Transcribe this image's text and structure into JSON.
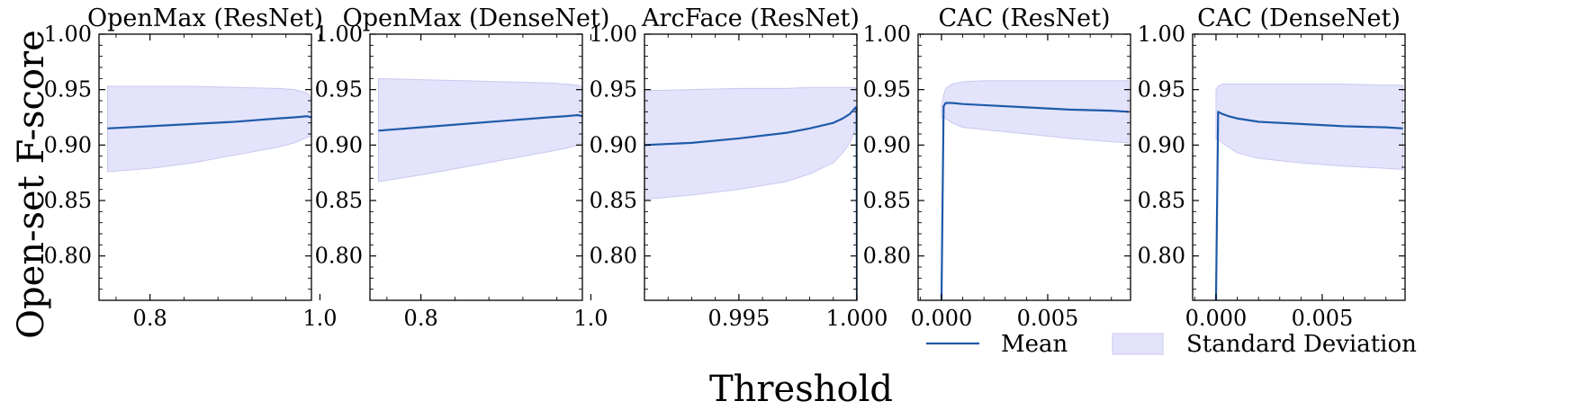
{
  "figure": {
    "ylabel": "Open-set F-score",
    "xlabel": "Threshold",
    "colors": {
      "mean": "#1f5aa8",
      "band_fill": "#e3e3fb",
      "band_edge": "#c9c9f2"
    },
    "legend": {
      "placement": "bottom-right",
      "items": [
        {
          "label": "Mean",
          "kind": "line"
        },
        {
          "label": "Standard Deviation",
          "kind": "band"
        }
      ]
    }
  },
  "chart_data": [
    {
      "type": "line",
      "title": "OpenMax (ResNet)",
      "xlim": [
        0.74,
        0.99
      ],
      "ylim": [
        0.76,
        1.0
      ],
      "xticks": [
        {
          "v": 0.8,
          "label": "0.8"
        },
        {
          "v": 1.0,
          "label": "1.0"
        }
      ],
      "yticks": [
        0.8,
        0.85,
        0.9,
        0.95,
        1.0
      ],
      "ytick_labels": [
        "0.80",
        "0.85",
        "0.90",
        "0.95",
        "1.00"
      ],
      "x": [
        0.75,
        0.8,
        0.85,
        0.9,
        0.95,
        0.97,
        0.985,
        0.99
      ],
      "mean": [
        0.915,
        0.917,
        0.919,
        0.921,
        0.924,
        0.925,
        0.926,
        0.925
      ],
      "upper": [
        0.953,
        0.953,
        0.953,
        0.952,
        0.951,
        0.95,
        0.947,
        0.942
      ],
      "lower": [
        0.876,
        0.879,
        0.884,
        0.891,
        0.898,
        0.902,
        0.907,
        0.908
      ]
    },
    {
      "type": "line",
      "title": "OpenMax (DenseNet)",
      "xlim": [
        0.74,
        0.99
      ],
      "ylim": [
        0.76,
        1.0
      ],
      "xticks": [
        {
          "v": 0.8,
          "label": "0.8"
        },
        {
          "v": 1.0,
          "label": "1.0"
        }
      ],
      "yticks": [
        0.8,
        0.85,
        0.9,
        0.95,
        1.0
      ],
      "ytick_labels": [
        "0.80",
        "0.85",
        "0.90",
        "0.95",
        "1.00"
      ],
      "x": [
        0.75,
        0.8,
        0.85,
        0.9,
        0.95,
        0.97,
        0.985,
        0.99
      ],
      "mean": [
        0.913,
        0.916,
        0.919,
        0.922,
        0.925,
        0.926,
        0.927,
        0.926
      ],
      "upper": [
        0.96,
        0.959,
        0.958,
        0.957,
        0.956,
        0.955,
        0.954,
        0.952
      ],
      "lower": [
        0.867,
        0.873,
        0.88,
        0.887,
        0.894,
        0.897,
        0.9,
        0.902
      ]
    },
    {
      "type": "line",
      "title": "ArcFace (ResNet)",
      "xlim": [
        0.991,
        1.0
      ],
      "ylim": [
        0.76,
        1.0
      ],
      "xticks": [
        {
          "v": 0.995,
          "label": "0.995"
        },
        {
          "v": 1.0,
          "label": "1.000"
        }
      ],
      "yticks": [
        0.8,
        0.85,
        0.9,
        0.95,
        1.0
      ],
      "ytick_labels": [
        "0.80",
        "0.85",
        "0.90",
        "0.95",
        "1.00"
      ],
      "x": [
        0.991,
        0.993,
        0.995,
        0.997,
        0.998,
        0.999,
        0.9994,
        0.9997,
        0.99995,
        0.99999,
        1.0
      ],
      "mean": [
        0.9,
        0.902,
        0.906,
        0.911,
        0.915,
        0.92,
        0.924,
        0.928,
        0.934,
        0.93,
        0.76
      ],
      "upper": [
        0.949,
        0.95,
        0.951,
        0.951,
        0.952,
        0.952,
        0.952,
        0.952,
        0.952,
        0.948,
        0.945
      ],
      "lower": [
        0.851,
        0.855,
        0.86,
        0.867,
        0.874,
        0.884,
        0.893,
        0.902,
        0.915,
        0.93,
        0.94
      ]
    },
    {
      "type": "line",
      "title": "CAC (ResNet)",
      "xlim": [
        -0.0011,
        0.0089
      ],
      "ylim": [
        0.76,
        1.0
      ],
      "xticks": [
        {
          "v": 0.0,
          "label": "0.000"
        },
        {
          "v": 0.005,
          "label": "0.005"
        }
      ],
      "yticks": [
        0.8,
        0.85,
        0.9,
        0.95,
        1.0
      ],
      "ytick_labels": [
        "0.80",
        "0.85",
        "0.90",
        "0.95",
        "1.00"
      ],
      "x": [
        0.0,
        0.0001,
        0.0002,
        0.0005,
        0.001,
        0.002,
        0.004,
        0.006,
        0.008,
        0.0088
      ],
      "mean": [
        0.76,
        0.935,
        0.938,
        0.938,
        0.937,
        0.936,
        0.934,
        0.932,
        0.931,
        0.93
      ],
      "upper": [
        0.935,
        0.945,
        0.951,
        0.955,
        0.957,
        0.958,
        0.958,
        0.958,
        0.958,
        0.958
      ],
      "lower": [
        0.924,
        0.924,
        0.924,
        0.92,
        0.916,
        0.914,
        0.91,
        0.906,
        0.903,
        0.902
      ]
    },
    {
      "type": "line",
      "title": "CAC (DenseNet)",
      "xlim": [
        -0.0011,
        0.0089
      ],
      "ylim": [
        0.76,
        1.0
      ],
      "xticks": [
        {
          "v": 0.0,
          "label": "0.000"
        },
        {
          "v": 0.005,
          "label": "0.005"
        }
      ],
      "yticks": [
        0.8,
        0.85,
        0.9,
        0.95,
        1.0
      ],
      "ytick_labels": [
        "0.80",
        "0.85",
        "0.90",
        "0.95",
        "1.00"
      ],
      "x": [
        0.0,
        0.0001,
        0.0003,
        0.0006,
        0.001,
        0.002,
        0.004,
        0.006,
        0.008,
        0.0088
      ],
      "mean": [
        0.76,
        0.93,
        0.928,
        0.926,
        0.924,
        0.921,
        0.919,
        0.917,
        0.916,
        0.915
      ],
      "upper": [
        0.95,
        0.953,
        0.955,
        0.955,
        0.955,
        0.955,
        0.955,
        0.955,
        0.954,
        0.954
      ],
      "lower": [
        0.905,
        0.905,
        0.902,
        0.898,
        0.893,
        0.888,
        0.884,
        0.881,
        0.879,
        0.878
      ]
    }
  ]
}
